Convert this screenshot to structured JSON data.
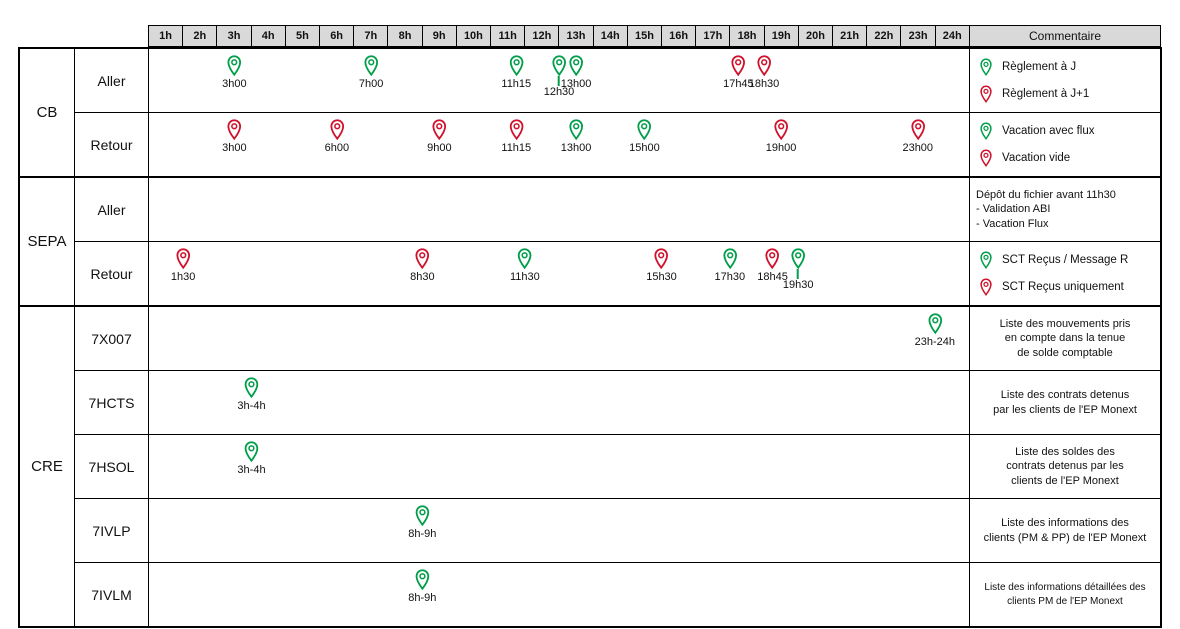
{
  "colors": {
    "green": "#009E49",
    "red": "#D0112B",
    "header_bg": "#D9D9D9",
    "border": "#000000"
  },
  "header": {
    "hours": [
      "1h",
      "2h",
      "3h",
      "4h",
      "5h",
      "6h",
      "7h",
      "8h",
      "9h",
      "10h",
      "11h",
      "12h",
      "13h",
      "14h",
      "15h",
      "16h",
      "17h",
      "18h",
      "19h",
      "20h",
      "21h",
      "22h",
      "23h",
      "24h"
    ],
    "comment_label": "Commentaire"
  },
  "groups": [
    {
      "label": "CB",
      "rows": [
        {
          "label": "Aller",
          "pins": [
            {
              "t": 3,
              "color": "green",
              "label": "3h00"
            },
            {
              "t": 7,
              "color": "green",
              "label": "7h00"
            },
            {
              "t": 11.25,
              "color": "green",
              "label": "11h15"
            },
            {
              "t": 12.5,
              "color": "green",
              "label": "12h30",
              "low": true
            },
            {
              "t": 13,
              "color": "green",
              "label": "13h00"
            },
            {
              "t": 17.75,
              "color": "red",
              "label": "17h45"
            },
            {
              "t": 18.5,
              "color": "red",
              "label": "18h30"
            }
          ],
          "comment": {
            "type": "legend",
            "items": [
              {
                "color": "green",
                "text": "Règlement à J"
              },
              {
                "color": "red",
                "text": "Règlement à J+1"
              }
            ]
          }
        },
        {
          "label": "Retour",
          "pins": [
            {
              "t": 3,
              "color": "red",
              "label": "3h00"
            },
            {
              "t": 6,
              "color": "red",
              "label": "6h00"
            },
            {
              "t": 9,
              "color": "red",
              "label": "9h00"
            },
            {
              "t": 11.25,
              "color": "red",
              "label": "11h15"
            },
            {
              "t": 13,
              "color": "green",
              "label": "13h00"
            },
            {
              "t": 15,
              "color": "green",
              "label": "15h00"
            },
            {
              "t": 19,
              "color": "red",
              "label": "19h00"
            },
            {
              "t": 23,
              "color": "red",
              "label": "23h00"
            }
          ],
          "comment": {
            "type": "legend",
            "items": [
              {
                "color": "green",
                "text": "Vacation avec flux"
              },
              {
                "color": "red",
                "text": "Vacation vide"
              }
            ]
          }
        }
      ]
    },
    {
      "label": "SEPA",
      "rows": [
        {
          "label": "Aller",
          "pins": [],
          "comment": {
            "type": "text",
            "align": "left",
            "lines": [
              "Dépôt du fichier avant 11h30",
              "- Validation ABI",
              "- Vacation Flux"
            ]
          }
        },
        {
          "label": "Retour",
          "pins": [
            {
              "t": 1.5,
              "color": "red",
              "label": "1h30"
            },
            {
              "t": 8.5,
              "color": "red",
              "label": "8h30"
            },
            {
              "t": 11.5,
              "color": "green",
              "label": "11h30"
            },
            {
              "t": 15.5,
              "color": "red",
              "label": "15h30"
            },
            {
              "t": 17.5,
              "color": "green",
              "label": "17h30"
            },
            {
              "t": 18.75,
              "color": "red",
              "label": "18h45"
            },
            {
              "t": 19.5,
              "color": "green",
              "label": "19h30",
              "low": true
            }
          ],
          "comment": {
            "type": "legend",
            "items": [
              {
                "color": "green",
                "text": "SCT Reçus / Message R"
              },
              {
                "color": "red",
                "text": "SCT Reçus uniquement"
              }
            ]
          }
        }
      ]
    },
    {
      "label": "CRE",
      "rows": [
        {
          "label": "7X007",
          "pins": [
            {
              "t": 23.5,
              "color": "green",
              "label": "23h-24h"
            }
          ],
          "comment": {
            "type": "text",
            "align": "center",
            "lines": [
              "Liste des mouvements pris",
              "en compte dans la tenue",
              "de solde comptable"
            ]
          }
        },
        {
          "label": "7HCTS",
          "pins": [
            {
              "t": 3.5,
              "color": "green",
              "label": "3h-4h"
            }
          ],
          "comment": {
            "type": "text",
            "align": "center",
            "lines": [
              "Liste des contrats detenus",
              "par les clients de l'EP Monext"
            ]
          }
        },
        {
          "label": "7HSOL",
          "pins": [
            {
              "t": 3.5,
              "color": "green",
              "label": "3h-4h"
            }
          ],
          "comment": {
            "type": "text",
            "align": "center",
            "lines": [
              "Liste des soldes des",
              "contrats detenus par les",
              "clients de l'EP Monext"
            ]
          }
        },
        {
          "label": "7IVLP",
          "pins": [
            {
              "t": 8.5,
              "color": "green",
              "label": "8h-9h"
            }
          ],
          "comment": {
            "type": "text",
            "align": "center",
            "lines": [
              "Liste des informations des",
              "clients (PM & PP) de l'EP Monext"
            ]
          }
        },
        {
          "label": "7IVLM",
          "pins": [
            {
              "t": 8.5,
              "color": "green",
              "label": "8h-9h"
            }
          ],
          "comment": {
            "type": "text",
            "align": "center",
            "small": true,
            "lines": [
              "Liste des informations détaillées des",
              "clients PM de l'EP Monext"
            ]
          }
        }
      ]
    }
  ]
}
